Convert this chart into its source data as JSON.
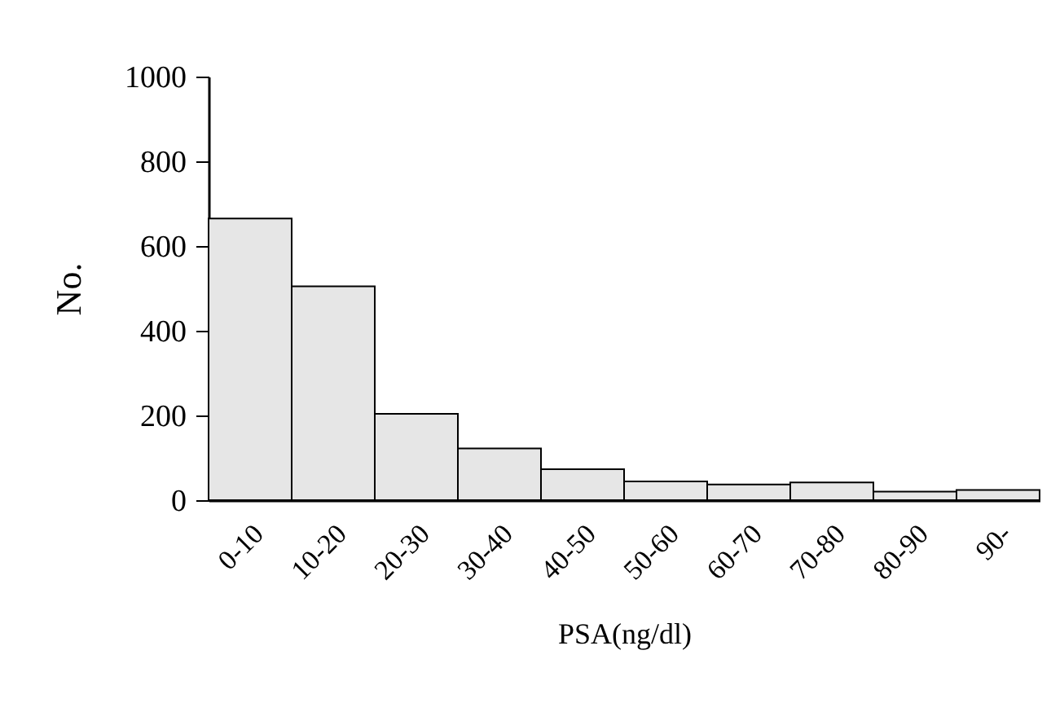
{
  "chart_data": {
    "type": "bar",
    "xlabel": "PSA(ng/dl)",
    "ylabel": "No.",
    "categories": [
      "0-10",
      "10-20",
      "20-30",
      "30-40",
      "40-50",
      "50-60",
      "60-70",
      "70-80",
      "80-90",
      "90-"
    ],
    "values": [
      665,
      505,
      204,
      122,
      73,
      44,
      37,
      42,
      20,
      24
    ],
    "color": "#e6e6e6",
    "ylim": [
      0,
      1000
    ],
    "yticks": [
      0,
      200,
      400,
      600,
      800,
      1000
    ],
    "grid": false
  }
}
